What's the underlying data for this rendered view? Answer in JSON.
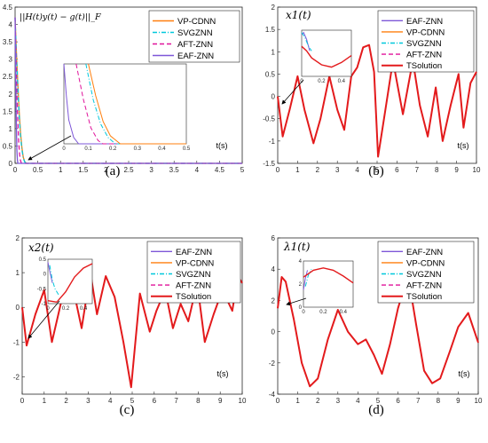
{
  "chart_data": [
    {
      "caption": "(a)",
      "type": "line",
      "title": "||H(t)y(t) − g(t)||_F",
      "xlabel": "t(s)",
      "xlim": [
        0,
        5
      ],
      "ylim": [
        0,
        4.5
      ],
      "xticks": [
        "0",
        "0.5",
        "1",
        "1.5",
        "2",
        "2.5",
        "3",
        "3.5",
        "4",
        "4.5",
        "5"
      ],
      "yticks": [
        "0",
        "0.5",
        "1",
        "1.5",
        "2",
        "2.5",
        "3",
        "3.5",
        "4",
        "4.5"
      ],
      "legend": {
        "position": "top-right",
        "entries": [
          "VP-CDNN",
          "SVGZNN",
          "AFT-ZNN",
          "EAF-ZNN"
        ]
      },
      "series": [
        {
          "name": "VP-CDNN",
          "color": "#ff7f0e",
          "style": "solid",
          "x": [
            0,
            0.03,
            0.06,
            0.09,
            0.12,
            0.15,
            0.18,
            0.21,
            0.25,
            5
          ],
          "y": [
            4.2,
            3.2,
            2.3,
            1.5,
            0.9,
            0.45,
            0.18,
            0.05,
            0,
            0
          ]
        },
        {
          "name": "SVGZNN",
          "color": "#00c8dc",
          "style": "dashdot",
          "x": [
            0,
            0.03,
            0.06,
            0.09,
            0.12,
            0.15,
            0.18,
            0.21,
            0.25,
            5
          ],
          "y": [
            4.2,
            3.1,
            2.2,
            1.4,
            0.8,
            0.4,
            0.15,
            0.04,
            0,
            0
          ]
        },
        {
          "name": "AFT-ZNN",
          "color": "#e0139b",
          "style": "dashed",
          "x": [
            0,
            0.02,
            0.04,
            0.06,
            0.08,
            0.1,
            0.12,
            0.14,
            5
          ],
          "y": [
            4.2,
            3.0,
            2.0,
            1.2,
            0.6,
            0.25,
            0.08,
            0,
            0
          ]
        },
        {
          "name": "EAF-ZNN",
          "color": "#7e57d8",
          "style": "solid",
          "x": [
            0,
            0.01,
            0.02,
            0.03,
            0.04,
            0.05,
            0.06,
            5
          ],
          "y": [
            4.2,
            2.9,
            1.8,
            1.0,
            0.4,
            0.1,
            0,
            0
          ]
        }
      ],
      "inset": {
        "xlim": [
          0,
          0.5
        ],
        "ylim": [
          0,
          1
        ],
        "xticks": [
          "0",
          "0.1",
          "0.2",
          "0.3",
          "0.4",
          "0.5"
        ]
      }
    },
    {
      "caption": "(b)",
      "type": "line",
      "title": "x1(t)",
      "xlabel": "t(s)",
      "xlim": [
        0,
        10
      ],
      "ylim": [
        -1.5,
        2
      ],
      "xticks": [
        "0",
        "1",
        "2",
        "3",
        "4",
        "5",
        "6",
        "7",
        "8",
        "9",
        "10"
      ],
      "yticks": [
        "-1.5",
        "-1",
        "-0.5",
        "0",
        "0.5",
        "1",
        "1.5",
        "2"
      ],
      "legend": {
        "position": "top-right",
        "entries": [
          "EAF-ZNN",
          "VP-CDNN",
          "SVGZNN",
          "AFT-ZNN",
          "TSolution"
        ]
      },
      "series": [
        {
          "name": "TSolution",
          "color": "#e31a1c",
          "style": "solid",
          "x": [
            0,
            0.25,
            0.6,
            1.0,
            1.35,
            1.8,
            2.15,
            2.6,
            3.0,
            3.35,
            3.7,
            4.0,
            4.3,
            4.6,
            4.85,
            5.05,
            5.35,
            5.8,
            6.3,
            6.8,
            7.15,
            7.55,
            7.95,
            8.3,
            8.7,
            9.1,
            9.35,
            9.7,
            10
          ],
          "y": [
            0,
            -0.9,
            -0.3,
            0.45,
            -0.3,
            -1.05,
            -0.5,
            0.45,
            -0.3,
            -0.75,
            0.45,
            0.65,
            1.1,
            1.15,
            0.55,
            -1.35,
            -0.5,
            0.8,
            -0.4,
            0.8,
            -0.2,
            -0.9,
            0.2,
            -1.0,
            -0.2,
            0.5,
            -0.7,
            0.3,
            0.55
          ]
        }
      ],
      "inset": {
        "xlim": [
          0,
          0.5
        ],
        "ylim": [
          -1,
          1
        ],
        "xticks": [
          "0",
          "0.2",
          "0.4"
        ]
      }
    },
    {
      "caption": "(c)",
      "type": "line",
      "title": "x2(t)",
      "xlabel": "t(s)",
      "xlim": [
        0,
        10
      ],
      "ylim": [
        -2.5,
        2
      ],
      "xticks": [
        "0",
        "1",
        "2",
        "3",
        "4",
        "5",
        "6",
        "7",
        "8",
        "9",
        "10"
      ],
      "yticks": [
        "-2",
        "-1",
        "0",
        "1",
        "2"
      ],
      "legend": {
        "position": "top-right",
        "entries": [
          "EAF-ZNN",
          "VP-CDNN",
          "SVGZNN",
          "AFT-ZNN",
          "TSolution"
        ]
      },
      "series": [
        {
          "name": "TSolution",
          "color": "#e31a1c",
          "style": "solid",
          "x": [
            0,
            0.2,
            0.6,
            1.0,
            1.35,
            1.9,
            2.4,
            2.7,
            3.1,
            3.4,
            3.8,
            4.2,
            4.6,
            4.95,
            5.35,
            5.8,
            6.1,
            6.5,
            6.85,
            7.2,
            7.55,
            7.95,
            8.3,
            8.7,
            9.1,
            9.55,
            9.8,
            10
          ],
          "y": [
            0,
            -1.1,
            -0.2,
            0.5,
            -1.0,
            0.5,
            0.3,
            -0.6,
            1.0,
            -0.2,
            0.9,
            0.3,
            -1.0,
            -2.3,
            0.4,
            -0.7,
            -0.1,
            0.5,
            -0.6,
            0.1,
            -0.4,
            0.7,
            -1.0,
            -0.2,
            0.5,
            -0.1,
            0.9,
            0.7
          ]
        }
      ],
      "inset": {
        "xlim": [
          0,
          0.5
        ],
        "ylim": [
          -1,
          0.5
        ],
        "xticks": [
          "0",
          "0.2",
          "0.4"
        ],
        "yticks": [
          "0.5",
          "0",
          "-0.5",
          "-1"
        ]
      }
    },
    {
      "caption": "(d)",
      "type": "line",
      "title": "λ1(t)",
      "xlabel": "t(s)",
      "xlim": [
        0,
        10
      ],
      "ylim": [
        -4,
        6
      ],
      "xticks": [
        "0",
        "1",
        "2",
        "3",
        "4",
        "5",
        "6",
        "7",
        "8",
        "9",
        "10"
      ],
      "yticks": [
        "-4",
        "-2",
        "0",
        "2",
        "4",
        "6"
      ],
      "legend": {
        "position": "top-right",
        "entries": [
          "EAF-ZNN",
          "VP-CDNN",
          "SVGZNN",
          "AFT-ZNN",
          "TSolution"
        ]
      },
      "series": [
        {
          "name": "TSolution",
          "color": "#e31a1c",
          "style": "solid",
          "x": [
            0,
            0.2,
            0.4,
            0.8,
            1.2,
            1.6,
            2.0,
            2.5,
            3.0,
            3.5,
            4.0,
            4.4,
            4.8,
            5.2,
            5.6,
            6.0,
            6.5,
            6.9,
            7.3,
            7.7,
            8.1,
            8.6,
            9.0,
            9.5,
            10
          ],
          "y": [
            1.5,
            3.5,
            3.2,
            0.8,
            -2.0,
            -3.5,
            -3.0,
            -0.5,
            1.4,
            0.0,
            -0.8,
            -0.5,
            -1.5,
            -2.7,
            -0.8,
            1.5,
            3.6,
            0.5,
            -2.5,
            -3.3,
            -3.0,
            -1.2,
            0.3,
            1.2,
            -0.7
          ]
        }
      ],
      "inset": {
        "xlim": [
          0,
          0.5
        ],
        "ylim": [
          0,
          4
        ],
        "xticks": [
          "0",
          "0.2",
          "0.4"
        ],
        "yticks": [
          "4",
          "2",
          "0"
        ]
      }
    }
  ]
}
